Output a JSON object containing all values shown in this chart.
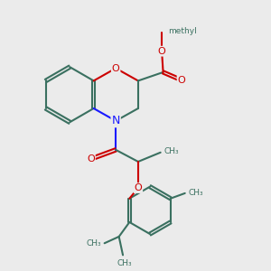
{
  "background_color": "#ebebeb",
  "bond_color": "#3a7060",
  "oxygen_color": "#cc0000",
  "nitrogen_color": "#1a1aff",
  "line_width": 1.5,
  "figsize": [
    3.0,
    3.0
  ],
  "dpi": 100,
  "xlim": [
    0,
    10
  ],
  "ylim": [
    0,
    10
  ]
}
